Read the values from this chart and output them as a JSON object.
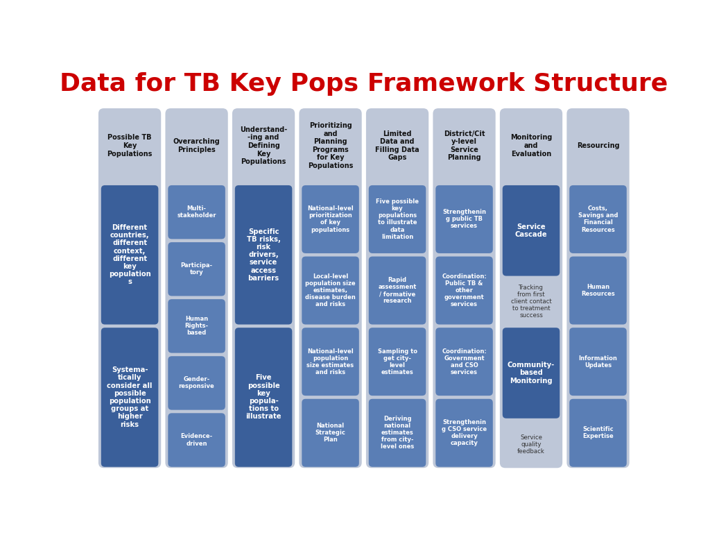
{
  "title": "Data for TB Key Pops Framework Structure",
  "title_color": "#cc0000",
  "title_fontsize": 26,
  "bg_color": "#ffffff",
  "column_bg_color": "#bec7d8",
  "dark_box_color": "#3a5f9a",
  "light_box_color": "#5a7eb5",
  "box_text_color": "#ffffff",
  "header_text_color": "#111111",
  "columns": [
    {
      "header": "Possible TB\nKey\nPopulations",
      "items": [
        {
          "text": "Different\ncountries,\ndifferent\ncontext,\ndifferent\nkey\npopulation\ns",
          "style": "large"
        },
        {
          "text": "Systema-\ntically\nconsider all\npossible\npopulation\ngroups at\nhigher\nrisks",
          "style": "large"
        }
      ]
    },
    {
      "header": "Overarching\nPrinciples",
      "items": [
        {
          "text": "Multi-\nstakeholder",
          "style": "small"
        },
        {
          "text": "Participa-\ntory",
          "style": "small"
        },
        {
          "text": "Human\nRights-\nbased",
          "style": "small"
        },
        {
          "text": "Gender-\nresponsive",
          "style": "small"
        },
        {
          "text": "Evidence-\ndriven",
          "style": "small"
        }
      ]
    },
    {
      "header": "Understand-\n-ing and\nDefining\nKey\nPopulations",
      "items": [
        {
          "text": "Specific\nTB risks,\nrisk\ndrivers,\nservice\naccess\nbarriers",
          "style": "large"
        },
        {
          "text": "Five\npossible\nkey\npopula-\ntions to\nillustrate",
          "style": "large"
        }
      ]
    },
    {
      "header": "Prioritizing\nand\nPlanning\nPrograms\nfor Key\nPopulations",
      "items": [
        {
          "text": "National-level\nprioritization\nof key\npopulations",
          "style": "small"
        },
        {
          "text": "Local-level\npopulation size\nestimates,\ndisease burden\nand risks",
          "style": "small"
        },
        {
          "text": "National-level\npopulation\nsize estimates\nand risks",
          "style": "small"
        },
        {
          "text": "National\nStrategic\nPlan",
          "style": "small"
        }
      ]
    },
    {
      "header": "Limited\nData and\nFilling Data\nGaps",
      "items": [
        {
          "text": "Five possible\nkey\npopulations\nto illustrate\ndata\nlimitation",
          "style": "small"
        },
        {
          "text": "Rapid\nassessment\n/ formative\nresearch",
          "style": "small"
        },
        {
          "text": "Sampling to\nget city-\nlevel\nestimates",
          "style": "small"
        },
        {
          "text": "Deriving\nnational\nestimates\nfrom city-\nlevel ones",
          "style": "small"
        }
      ]
    },
    {
      "header": "District/Cit\ny-level\nService\nPlanning",
      "items": [
        {
          "text": "Strengthenin\ng public TB\nservices",
          "style": "small"
        },
        {
          "text": "Coordination:\nPublic TB &\nother\ngovernment\nservices",
          "style": "small"
        },
        {
          "text": "Coordination:\nGovernment\nand CSO\nservices",
          "style": "small"
        },
        {
          "text": "Strengthenin\ng CSO service\ndelivery\ncapacity",
          "style": "small"
        }
      ]
    },
    {
      "header": "Monitoring\nand\nEvaluation",
      "items": [
        {
          "text": "Service\nCascade",
          "style": "large"
        },
        {
          "text": "Tracking\nfrom first\nclient contact\nto treatment\nsuccess",
          "style": "plain"
        },
        {
          "text": "Community-\nbased\nMonitoring",
          "style": "large"
        },
        {
          "text": "Service\nquality\nfeedback",
          "style": "plain"
        }
      ]
    },
    {
      "header": "Resourcing",
      "items": [
        {
          "text": "Costs,\nSavings and\nFinancial\nResources",
          "style": "small"
        },
        {
          "text": "Human\nResources",
          "style": "small"
        },
        {
          "text": "Information\nUpdates",
          "style": "small"
        },
        {
          "text": "Scientific\nExpertise",
          "style": "small"
        }
      ]
    }
  ]
}
